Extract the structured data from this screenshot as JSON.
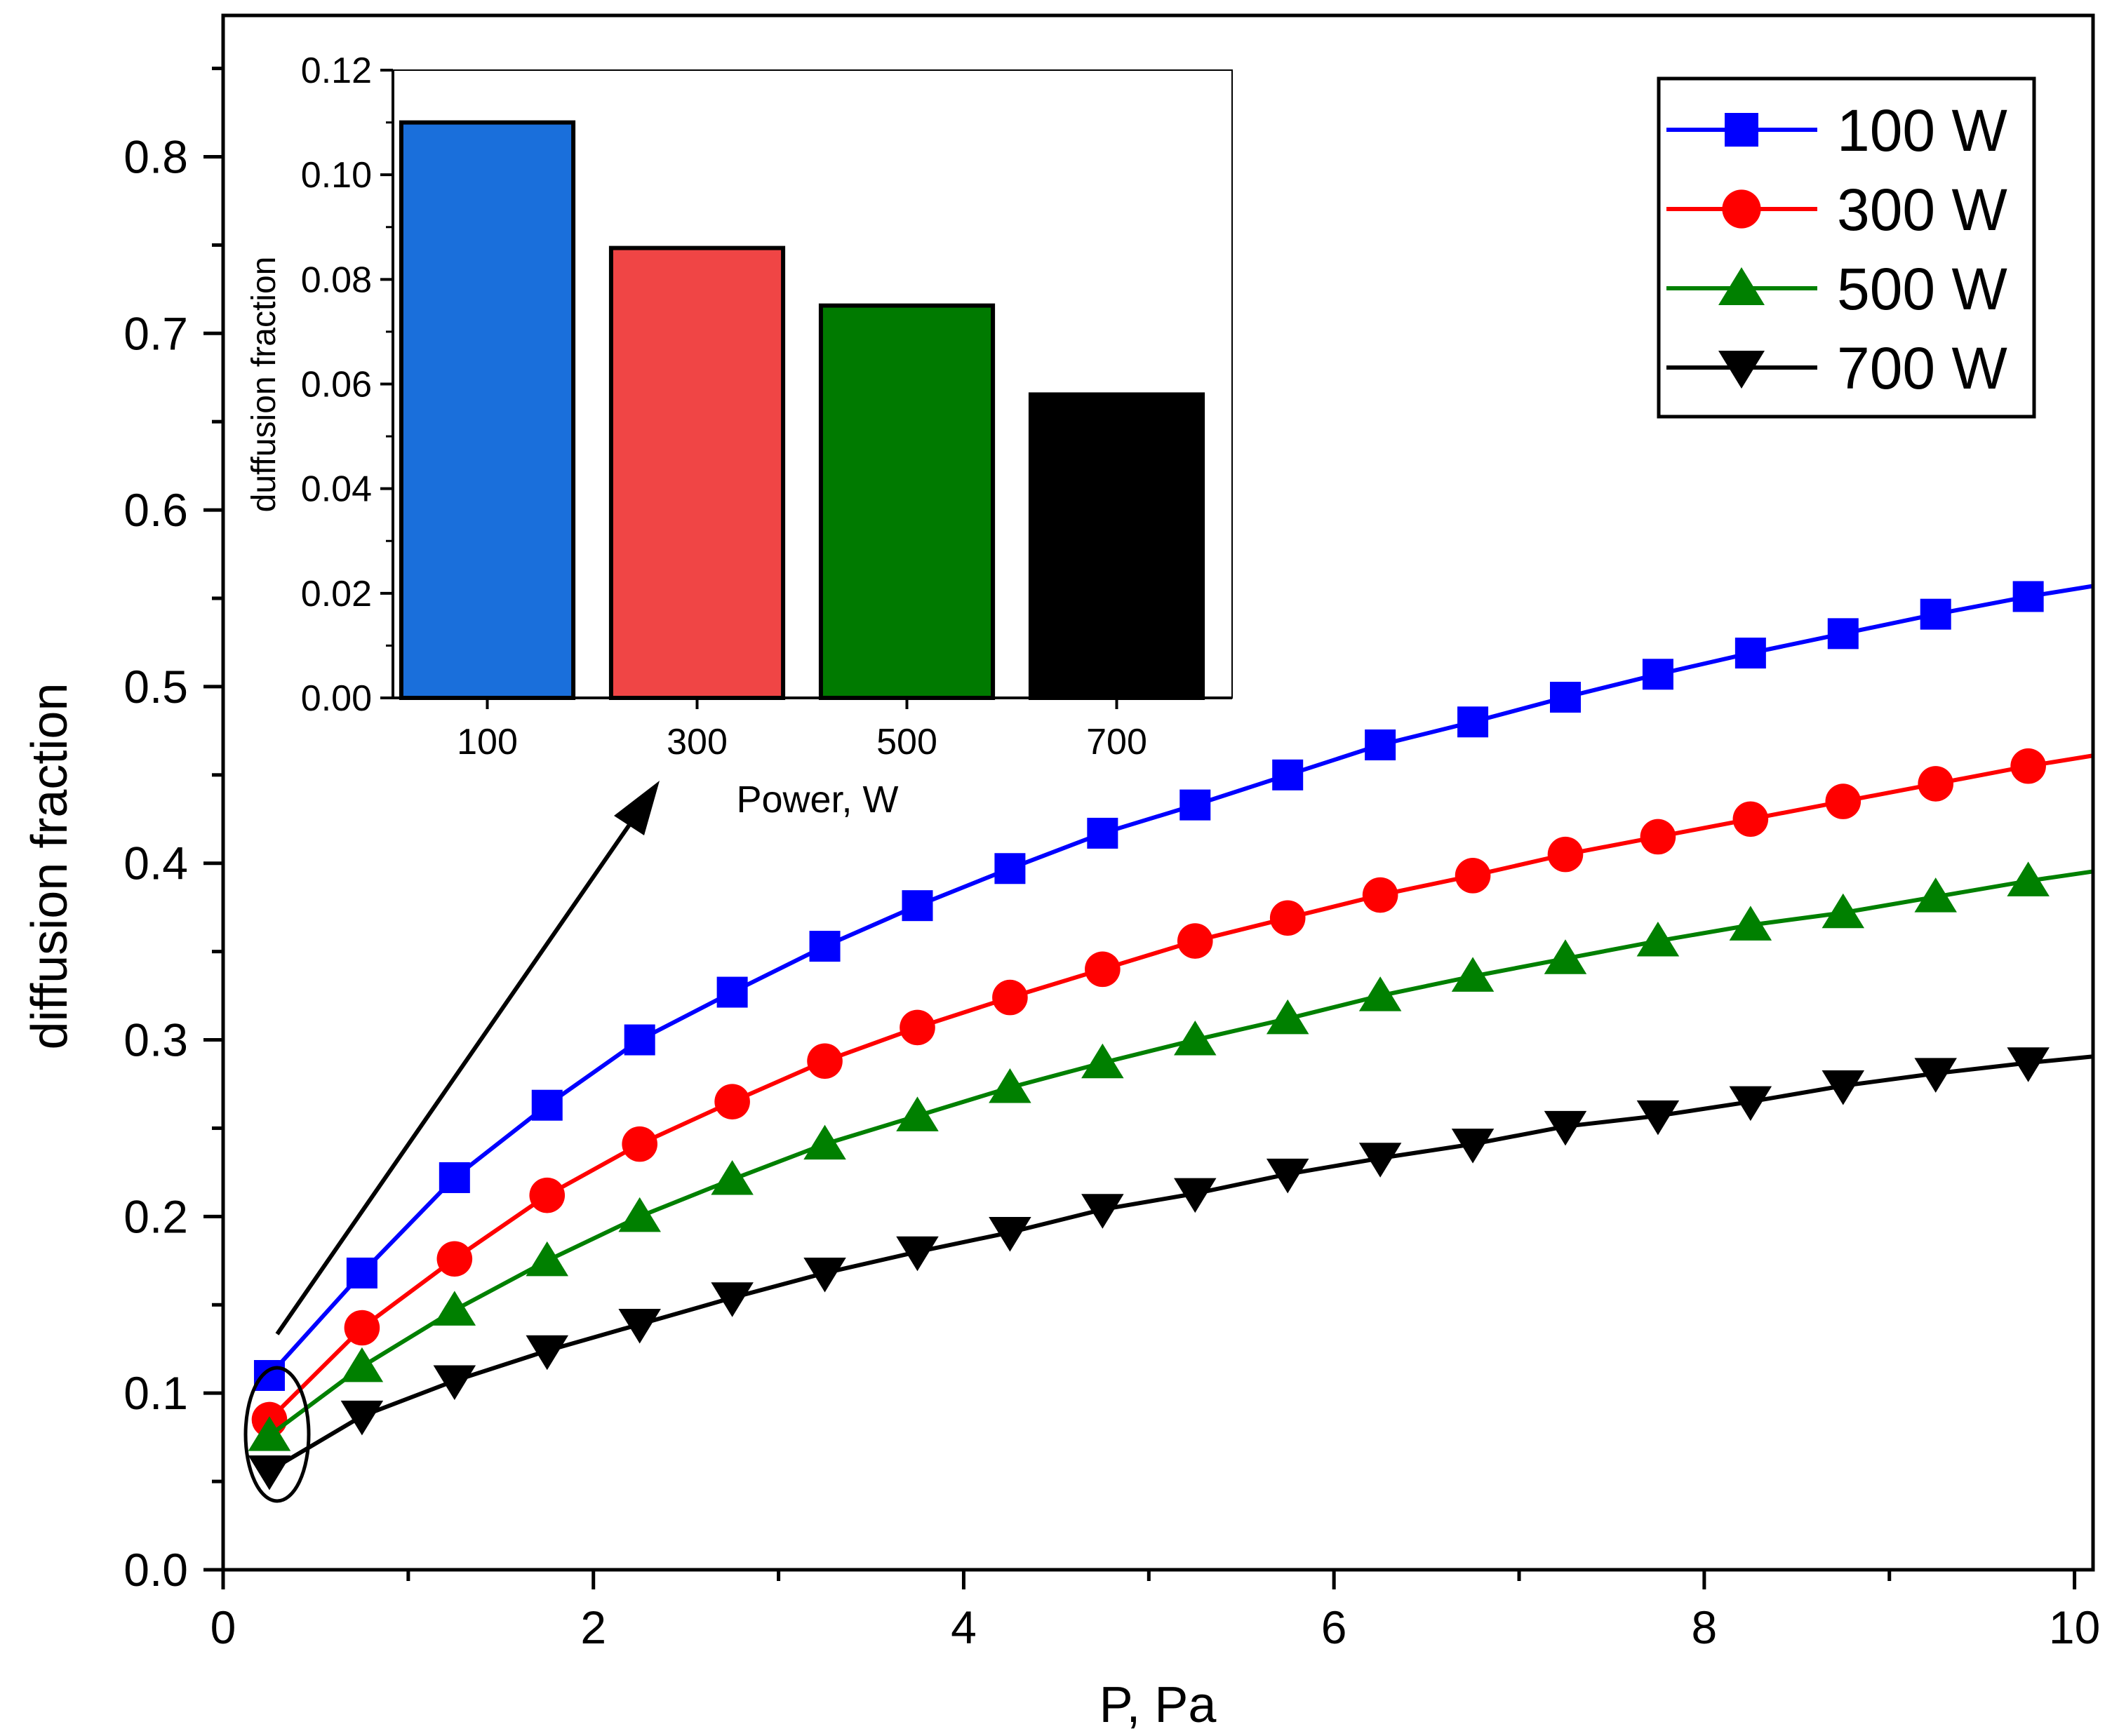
{
  "chart_data": [
    {
      "type": "line",
      "title": "",
      "xlabel": "P, Pa",
      "ylabel": "diffusion fraction",
      "xlim": [
        0,
        10.1
      ],
      "ylim": [
        0,
        0.88
      ],
      "xticks": [
        0,
        2,
        4,
        6,
        8,
        10
      ],
      "xtick_labels": [
        "0",
        "2",
        "4",
        "6",
        "8",
        "10"
      ],
      "yticks": [
        0.0,
        0.1,
        0.2,
        0.3,
        0.4,
        0.5,
        0.6,
        0.7,
        0.8
      ],
      "ytick_labels": [
        "0.0",
        "0.1",
        "0.2",
        "0.3",
        "0.4",
        "0.5",
        "0.6",
        "0.7",
        "0.8"
      ],
      "grid": false,
      "legend_position": "top-right",
      "x": [
        0.25,
        0.75,
        1.25,
        1.75,
        2.25,
        2.75,
        3.25,
        3.75,
        4.25,
        4.75,
        5.25,
        5.75,
        6.25,
        6.75,
        7.25,
        7.75,
        8.25,
        8.75,
        9.25,
        9.75
      ],
      "series": [
        {
          "name": "100 W",
          "color": "#0000ff",
          "marker": "square",
          "values": [
            0.11,
            0.168,
            0.222,
            0.263,
            0.3,
            0.327,
            0.353,
            0.376,
            0.397,
            0.417,
            0.433,
            0.45,
            0.467,
            0.48,
            0.494,
            0.507,
            0.519,
            0.53,
            0.541,
            0.551
          ]
        },
        {
          "name": "300 W",
          "color": "#ff0000",
          "marker": "circle",
          "values": [
            0.085,
            0.137,
            0.176,
            0.212,
            0.241,
            0.265,
            0.288,
            0.307,
            0.324,
            0.34,
            0.356,
            0.369,
            0.382,
            0.393,
            0.405,
            0.415,
            0.425,
            0.435,
            0.445,
            0.455
          ]
        },
        {
          "name": "500 W",
          "color": "#008000",
          "marker": "triangle-up",
          "values": [
            0.076,
            0.115,
            0.147,
            0.175,
            0.2,
            0.221,
            0.241,
            0.257,
            0.273,
            0.287,
            0.3,
            0.312,
            0.325,
            0.336,
            0.346,
            0.356,
            0.365,
            0.372,
            0.381,
            0.39
          ]
        },
        {
          "name": "700 W",
          "color": "#000000",
          "marker": "triangle-down",
          "values": [
            0.056,
            0.087,
            0.107,
            0.124,
            0.139,
            0.154,
            0.168,
            0.18,
            0.191,
            0.204,
            0.213,
            0.224,
            0.233,
            0.241,
            0.251,
            0.257,
            0.265,
            0.274,
            0.281,
            0.287
          ]
        }
      ]
    },
    {
      "type": "bar",
      "title": "",
      "xlabel": "Power, W",
      "ylabel": "duffusion fraction",
      "categories": [
        "100",
        "300",
        "500",
        "700"
      ],
      "values": [
        0.11,
        0.086,
        0.075,
        0.058
      ],
      "colors": [
        "#1a6fdb",
        "#f04545",
        "#007a00",
        "#000000"
      ],
      "ylim": [
        0,
        0.12
      ],
      "yticks": [
        0.0,
        0.02,
        0.04,
        0.06,
        0.08,
        0.1,
        0.12
      ],
      "ytick_labels": [
        "0.00",
        "0.02",
        "0.04",
        "0.06",
        "0.08",
        "0.10",
        "0.12"
      ],
      "grid": false
    }
  ]
}
